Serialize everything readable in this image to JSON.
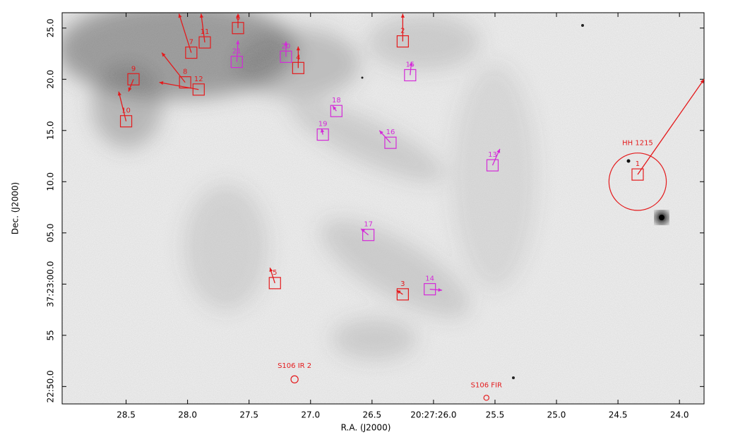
{
  "chart_data": {
    "type": "sky-map",
    "xlabel": "R.A. (J2000)",
    "ylabel": "Dec. (J2000)",
    "xlim": [
      29.02,
      23.8
    ],
    "ylim": [
      48.3,
      86.5
    ],
    "xticks": [
      28.5,
      {
        "value": 28.0,
        "label": "28.0"
      },
      27.5,
      {
        "value": 27.0,
        "label": "27.0"
      },
      26.5,
      {
        "value": 26.0,
        "label": "20:27:26.0"
      },
      25.5,
      {
        "value": 25.0,
        "label": "25.0"
      },
      24.5,
      {
        "value": 24.0,
        "label": "24.0"
      }
    ],
    "yticks": [
      {
        "value": 50,
        "label": "22:50.0"
      },
      55,
      {
        "value": 60,
        "label": "37:23:00.0"
      },
      {
        "value": 65,
        "label": "05.0"
      },
      {
        "value": 70,
        "label": "10.0"
      },
      {
        "value": 75,
        "label": "15.0"
      },
      {
        "value": 80,
        "label": "20.0"
      },
      {
        "value": 85,
        "label": "25.0"
      }
    ],
    "knots": [
      {
        "label": "1",
        "color": "#e41a1c",
        "ra": 24.34,
        "dec": 70.7,
        "tip_ra": 23.8,
        "tip_dec": 80.0
      },
      {
        "label": "2",
        "color": "#e41a1c",
        "ra": 26.25,
        "dec": 83.7,
        "tip_ra": 26.25,
        "tip_dec": 86.4
      },
      {
        "label": "3",
        "color": "#e41a1c",
        "ra": 26.25,
        "dec": 59.0,
        "tip_ra": 26.3,
        "tip_dec": 59.4
      },
      {
        "label": "4",
        "color": "#e41a1c",
        "ra": 27.1,
        "dec": 81.1,
        "tip_ra": 27.1,
        "tip_dec": 83.2
      },
      {
        "label": "5",
        "color": "#e41a1c",
        "ra": 27.29,
        "dec": 60.1,
        "tip_ra": 27.33,
        "tip_dec": 61.6
      },
      {
        "label": "6",
        "color": "#e41a1c",
        "ra": 27.59,
        "dec": 85.0,
        "tip_ra": 27.59,
        "tip_dec": 86.4
      },
      {
        "label": "7",
        "color": "#e41a1c",
        "ra": 27.97,
        "dec": 82.6,
        "tip_ra": 28.07,
        "tip_dec": 86.4
      },
      {
        "label": "8",
        "color": "#e41a1c",
        "ra": 28.02,
        "dec": 79.7,
        "tip_ra": 28.21,
        "tip_dec": 82.6
      },
      {
        "label": "9",
        "color": "#e41a1c",
        "ra": 28.44,
        "dec": 80.0,
        "tip_ra": 28.48,
        "tip_dec": 78.8
      },
      {
        "label": "10",
        "color": "#e41a1c",
        "ra": 28.5,
        "dec": 75.9,
        "tip_ra": 28.56,
        "tip_dec": 78.8
      },
      {
        "label": "11",
        "color": "#e41a1c",
        "ra": 27.86,
        "dec": 83.6,
        "tip_ra": 27.89,
        "tip_dec": 86.4
      },
      {
        "label": "12",
        "color": "#e41a1c",
        "ra": 27.91,
        "dec": 79.0,
        "tip_ra": 28.23,
        "tip_dec": 79.7
      },
      {
        "label": "13",
        "color": "#d42ad8",
        "ra": 25.52,
        "dec": 71.6,
        "tip_ra": 25.46,
        "tip_dec": 73.2
      },
      {
        "label": "14",
        "color": "#d42ad8",
        "ra": 26.03,
        "dec": 59.5,
        "tip_ra": 25.93,
        "tip_dec": 59.4
      },
      {
        "label": "15",
        "color": "#d42ad8",
        "ra": 26.19,
        "dec": 80.4,
        "tip_ra": 26.18,
        "tip_dec": 81.7
      },
      {
        "label": "16",
        "color": "#d42ad8",
        "ra": 26.35,
        "dec": 73.8,
        "tip_ra": 26.44,
        "tip_dec": 75.0
      },
      {
        "label": "17",
        "color": "#d42ad8",
        "ra": 26.53,
        "dec": 64.8,
        "tip_ra": 26.59,
        "tip_dec": 65.4
      },
      {
        "label": "18",
        "color": "#d42ad8",
        "ra": 26.79,
        "dec": 76.9,
        "tip_ra": 26.82,
        "tip_dec": 77.4
      },
      {
        "label": "19",
        "color": "#d42ad8",
        "ra": 26.9,
        "dec": 74.6,
        "tip_ra": 26.91,
        "tip_dec": 75.2
      },
      {
        "label": "20",
        "color": "#d42ad8",
        "ra": 27.2,
        "dec": 82.2,
        "tip_ra": 27.2,
        "tip_dec": 83.7
      },
      {
        "label": "21",
        "color": "#d42ad8",
        "ra": 27.6,
        "dec": 81.7,
        "tip_ra": 27.59,
        "tip_dec": 83.8
      }
    ],
    "regions": [
      {
        "label": "HH 1215",
        "color": "#e41a1c",
        "ra": 24.34,
        "dec": 70.0,
        "radius": 2.8
      },
      {
        "label": "S106 IR 2",
        "color": "#e41a1c",
        "ra": 27.13,
        "dec": 50.7,
        "radius": 0.35
      },
      {
        "label": "S106  FIR",
        "color": "#e41a1c",
        "ra": 25.57,
        "dec": 48.9,
        "radius": 0.25
      }
    ]
  }
}
